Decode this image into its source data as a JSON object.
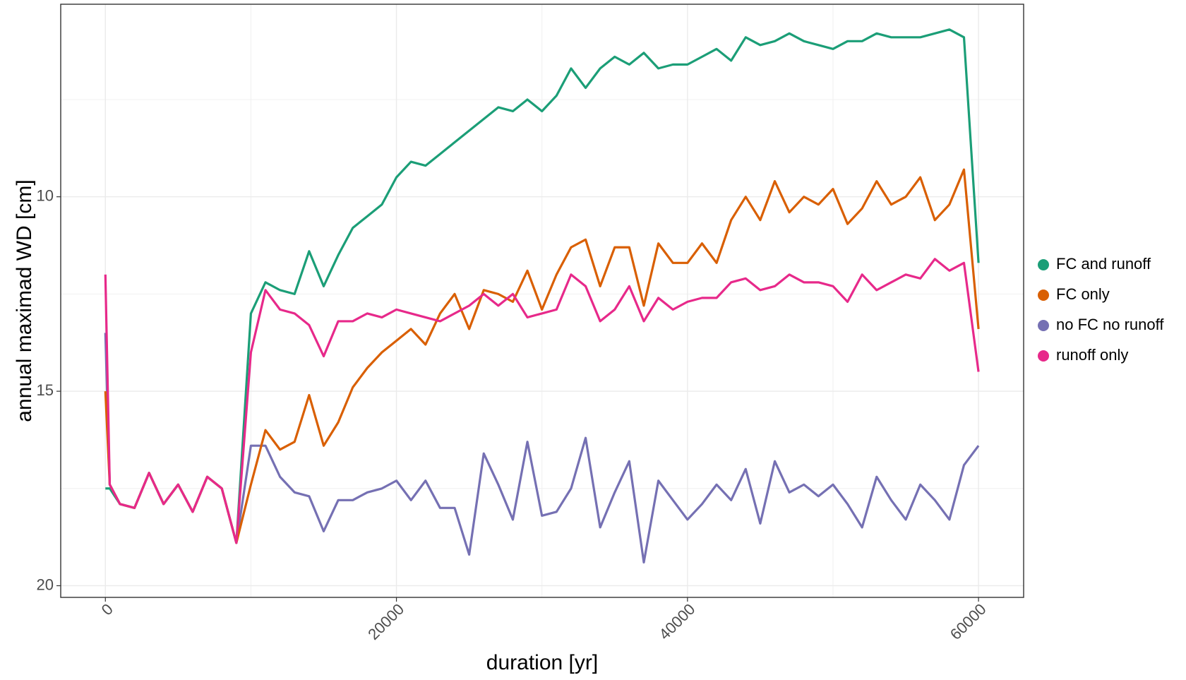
{
  "chart_data": {
    "type": "line",
    "x_label": "duration [yr]",
    "y_label": "annual maximad WD [cm]",
    "x": [
      0,
      300,
      1000,
      2000,
      3000,
      4000,
      5000,
      6000,
      7000,
      8000,
      9000,
      10000,
      11000,
      12000,
      13000,
      14000,
      15000,
      16000,
      17000,
      18000,
      19000,
      20000,
      21000,
      22000,
      23000,
      24000,
      25000,
      26000,
      27000,
      28000,
      29000,
      30000,
      31000,
      32000,
      33000,
      34000,
      35000,
      36000,
      37000,
      38000,
      39000,
      40000,
      41000,
      42000,
      43000,
      44000,
      45000,
      46000,
      47000,
      48000,
      49000,
      50000,
      51000,
      52000,
      53000,
      54000,
      55000,
      56000,
      57000,
      58000,
      59000,
      60000
    ],
    "series": [
      {
        "name": "FC and runoff",
        "color": "#1b9e77",
        "values": [
          17.5,
          17.5,
          17.9,
          18.0,
          17.1,
          17.9,
          17.4,
          18.1,
          17.2,
          17.5,
          18.9,
          13.0,
          12.2,
          12.4,
          12.5,
          11.4,
          12.3,
          11.5,
          10.8,
          10.5,
          10.2,
          9.5,
          9.1,
          9.2,
          8.9,
          8.6,
          8.3,
          8.0,
          7.7,
          7.8,
          7.5,
          7.8,
          7.4,
          6.7,
          7.2,
          6.7,
          6.4,
          6.6,
          6.3,
          6.7,
          6.6,
          6.6,
          6.4,
          6.2,
          6.5,
          5.9,
          6.1,
          6.0,
          5.8,
          6.0,
          6.1,
          6.2,
          6.0,
          6.0,
          5.8,
          5.9,
          5.9,
          5.9,
          5.8,
          5.7,
          5.9,
          11.7
        ]
      },
      {
        "name": "FC only",
        "color": "#d95f02",
        "values": [
          15.0,
          17.4,
          17.9,
          18.0,
          17.1,
          17.9,
          17.4,
          18.1,
          17.2,
          17.5,
          18.9,
          17.4,
          16.0,
          16.5,
          16.3,
          15.1,
          16.4,
          15.8,
          14.9,
          14.4,
          14.0,
          13.7,
          13.4,
          13.8,
          13.0,
          12.5,
          13.4,
          12.4,
          12.5,
          12.7,
          11.9,
          12.9,
          12.0,
          11.3,
          11.1,
          12.3,
          11.3,
          11.3,
          12.8,
          11.2,
          11.7,
          11.7,
          11.2,
          11.7,
          10.6,
          10.0,
          10.6,
          9.6,
          10.4,
          10.0,
          10.2,
          9.8,
          10.7,
          10.3,
          9.6,
          10.2,
          10.0,
          9.5,
          10.6,
          10.2,
          9.3,
          13.4
        ]
      },
      {
        "name": "no FC no runoff",
        "color": "#7570b3",
        "values": [
          13.5,
          17.4,
          17.9,
          18.0,
          17.1,
          17.9,
          17.4,
          18.1,
          17.2,
          17.5,
          18.9,
          16.4,
          16.4,
          17.2,
          17.6,
          17.7,
          18.6,
          17.8,
          17.8,
          17.6,
          17.5,
          17.3,
          17.8,
          17.3,
          18.0,
          18.0,
          19.2,
          16.6,
          17.4,
          18.3,
          16.3,
          18.2,
          18.1,
          17.5,
          16.2,
          18.5,
          17.6,
          16.8,
          19.4,
          17.3,
          17.8,
          18.3,
          17.9,
          17.4,
          17.8,
          17.0,
          18.4,
          16.8,
          17.6,
          17.4,
          17.7,
          17.4,
          17.9,
          18.5,
          17.2,
          17.8,
          18.3,
          17.4,
          17.8,
          18.3,
          16.9,
          16.4
        ]
      },
      {
        "name": "runoff only",
        "color": "#e7298a",
        "values": [
          12.0,
          17.4,
          17.9,
          18.0,
          17.1,
          17.9,
          17.4,
          18.1,
          17.2,
          17.5,
          18.9,
          14.0,
          12.4,
          12.9,
          13.0,
          13.3,
          14.1,
          13.2,
          13.2,
          13.0,
          13.1,
          12.9,
          13.0,
          13.1,
          13.2,
          13.0,
          12.8,
          12.5,
          12.8,
          12.5,
          13.1,
          13.0,
          12.9,
          12.0,
          12.3,
          13.2,
          12.9,
          12.3,
          13.2,
          12.6,
          12.9,
          12.7,
          12.6,
          12.6,
          12.2,
          12.1,
          12.4,
          12.3,
          12.0,
          12.2,
          12.2,
          12.3,
          12.7,
          12.0,
          12.4,
          12.2,
          12.0,
          12.1,
          11.6,
          11.9,
          11.7,
          14.5
        ]
      }
    ],
    "xlim": [
      -3070,
      63100
    ],
    "ylim": [
      5.05,
      20.3
    ],
    "y_reversed": true,
    "xticks": [
      0,
      20000,
      40000,
      60000
    ],
    "yticks": [
      10,
      15,
      20
    ],
    "grid": true,
    "legend_position": "right"
  }
}
